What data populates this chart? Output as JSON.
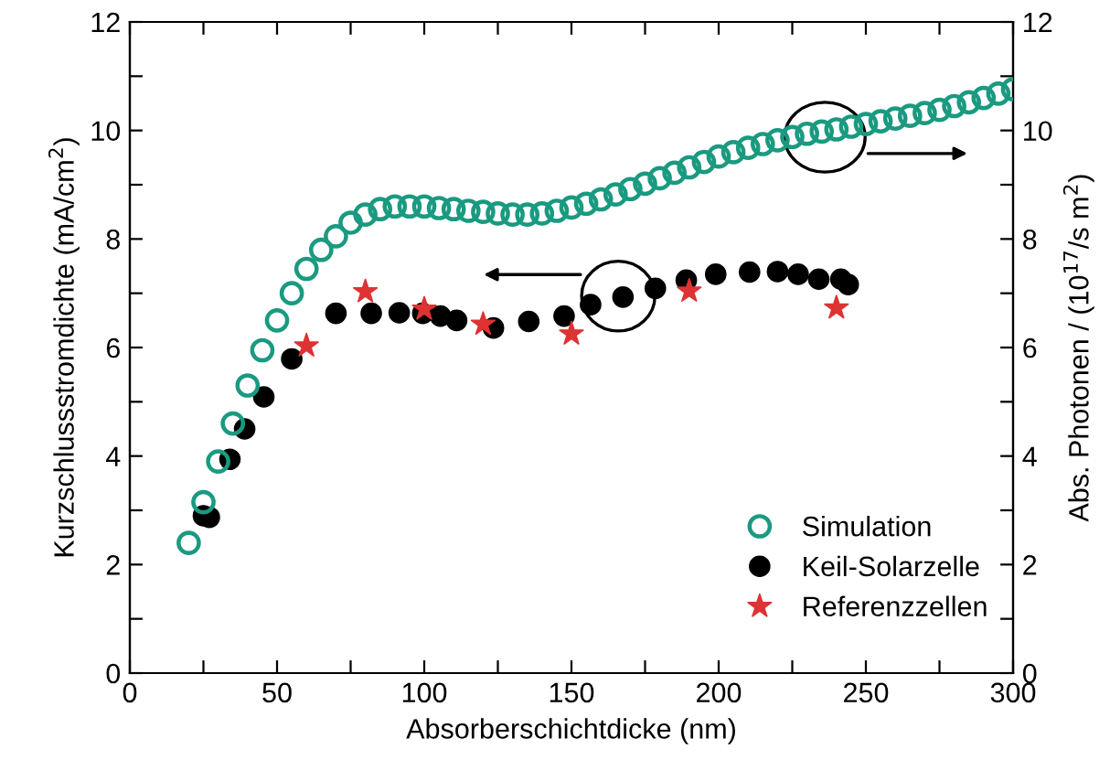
{
  "chart_data": {
    "type": "scatter",
    "xlabel": "Absorberschichtdicke (nm)",
    "ylabel": "Kurzschlussstromdichte (mA/cm$^{2}$)",
    "y2label": "Abs. Photonen / (10$^{17}$/s m$^{2}$)",
    "xlim": [
      0,
      300
    ],
    "ylim": [
      0,
      12
    ],
    "y2lim": [
      0,
      12
    ],
    "xticks": [
      0,
      {
        "value": 25,
        "label": null
      },
      50,
      {
        "value": 75,
        "label": null
      },
      100,
      {
        "value": 125,
        "label": null
      },
      150,
      {
        "value": 175,
        "label": null
      },
      200,
      {
        "value": 225,
        "label": null
      },
      250,
      {
        "value": 275,
        "label": null
      },
      300
    ],
    "yticks": [
      0,
      {
        "value": 1,
        "label": null
      },
      2,
      {
        "value": 3,
        "label": null
      },
      4,
      {
        "value": 5,
        "label": null
      },
      6,
      {
        "value": 7,
        "label": null
      },
      8,
      {
        "value": 9,
        "label": null
      },
      10,
      {
        "value": 11,
        "label": null
      },
      12
    ],
    "y2ticks": [
      0,
      {
        "value": 1,
        "label": null
      },
      2,
      {
        "value": 3,
        "label": null
      },
      4,
      {
        "value": 5,
        "label": null
      },
      6,
      {
        "value": 7,
        "label": null
      },
      8,
      {
        "value": 9,
        "label": null
      },
      10,
      {
        "value": 11,
        "label": null
      },
      12
    ],
    "grid": false,
    "legend": "bottom right",
    "series": [
      {
        "name": "Simulation",
        "color": "#1a9a80",
        "marker": "circle",
        "axis": "y2",
        "x": [
          20,
          25,
          30,
          35,
          40,
          45,
          50,
          55,
          60,
          65,
          70,
          75,
          80,
          85,
          90,
          95,
          100,
          105,
          110,
          115,
          120,
          125,
          130,
          135,
          140,
          145,
          150,
          155,
          160,
          165,
          170,
          175,
          180,
          185,
          190,
          195,
          200,
          205,
          210,
          215,
          220,
          225,
          230,
          235,
          240,
          245,
          250,
          255,
          260,
          265,
          270,
          275,
          280,
          285,
          290,
          295,
          300
        ],
        "values": [
          2.4,
          3.15,
          3.9,
          4.6,
          5.3,
          5.95,
          6.5,
          7.0,
          7.45,
          7.8,
          8.05,
          8.3,
          8.45,
          8.55,
          8.6,
          8.6,
          8.6,
          8.57,
          8.55,
          8.52,
          8.5,
          8.47,
          8.45,
          8.45,
          8.47,
          8.52,
          8.58,
          8.65,
          8.73,
          8.82,
          8.92,
          9.02,
          9.12,
          9.22,
          9.32,
          9.42,
          9.52,
          9.6,
          9.68,
          9.75,
          9.82,
          9.88,
          9.94,
          9.98,
          10.02,
          10.07,
          10.12,
          10.17,
          10.22,
          10.27,
          10.32,
          10.38,
          10.45,
          10.52,
          10.6,
          10.68,
          10.76
        ]
      },
      {
        "name": "Keil-Solarzelle",
        "color": "#000000",
        "marker": "circle",
        "x": [
          25,
          27,
          34,
          39,
          45.5,
          55,
          70,
          82,
          91.5,
          99.5,
          105.5,
          111,
          123.5,
          135.5,
          147.5,
          156.5,
          167.5,
          178.5,
          189,
          199,
          210.5,
          220,
          227,
          234,
          241.5,
          244
        ],
        "values": [
          2.9,
          2.87,
          3.94,
          4.5,
          5.09,
          5.79,
          6.63,
          6.63,
          6.64,
          6.63,
          6.58,
          6.5,
          6.36,
          6.48,
          6.58,
          6.79,
          6.93,
          7.09,
          7.24,
          7.35,
          7.39,
          7.4,
          7.35,
          7.26,
          7.26,
          7.16
        ]
      },
      {
        "name": "Referenzzellen",
        "color": "#dd3333",
        "marker": "star",
        "x": [
          60,
          80,
          100,
          120,
          150,
          190,
          240
        ],
        "values": [
          6.03,
          7.03,
          6.71,
          6.43,
          6.25,
          7.04,
          6.73
        ]
      }
    ]
  }
}
